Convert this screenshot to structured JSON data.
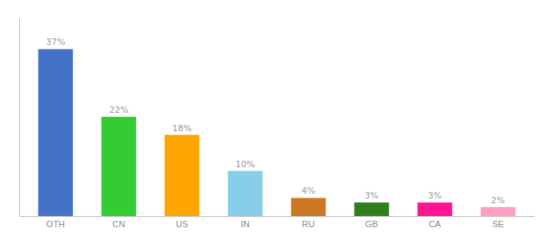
{
  "chart_data": {
    "type": "bar",
    "categories": [
      "OTH",
      "CN",
      "US",
      "IN",
      "RU",
      "GB",
      "CA",
      "SE"
    ],
    "values": [
      37,
      22,
      18,
      10,
      4,
      3,
      3,
      2
    ],
    "value_labels": [
      "37%",
      "22%",
      "18%",
      "10%",
      "4%",
      "3%",
      "3%",
      "2%"
    ],
    "colors": [
      "#4472C4",
      "#33CC33",
      "#FFA500",
      "#87CEEB",
      "#CC7722",
      "#2E7D1E",
      "#FF1493",
      "#FF9EC4"
    ],
    "ylim": [
      0,
      44
    ],
    "data_labels": true,
    "tick_labels": "x",
    "grid": false
  }
}
